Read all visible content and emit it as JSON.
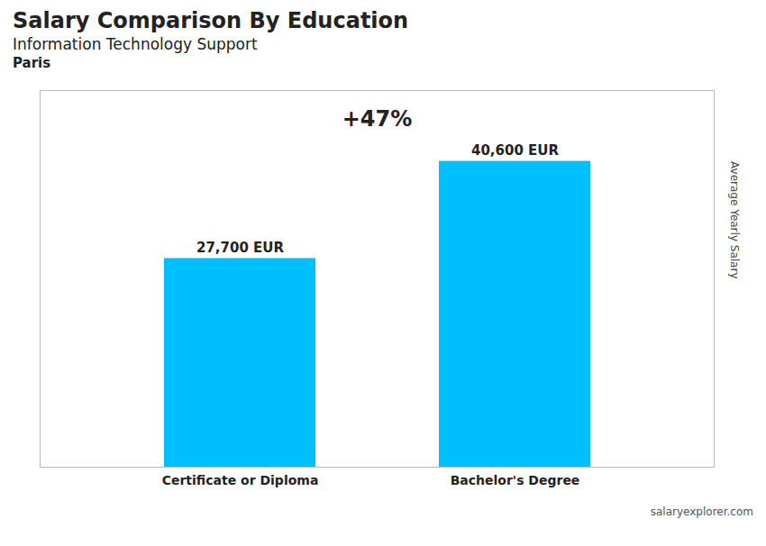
{
  "chart_data": {
    "type": "bar",
    "title": "Salary Comparison By Education",
    "subtitle": "Information Technology Support",
    "annotations": [
      "Paris",
      "+47%",
      "salaryexplorer.com"
    ],
    "y_label": "Average Yearly Salary",
    "categories": [
      "Certificate or Diploma",
      "Bachelor's Degree"
    ],
    "values": [
      27700,
      40600
    ],
    "value_labels": [
      "27,700 EUR",
      "40,600 EUR"
    ],
    "color": "#00BFFF",
    "ylim": [
      0,
      50000
    ],
    "data_labels": true,
    "tick_labels": "x",
    "grid": false
  }
}
